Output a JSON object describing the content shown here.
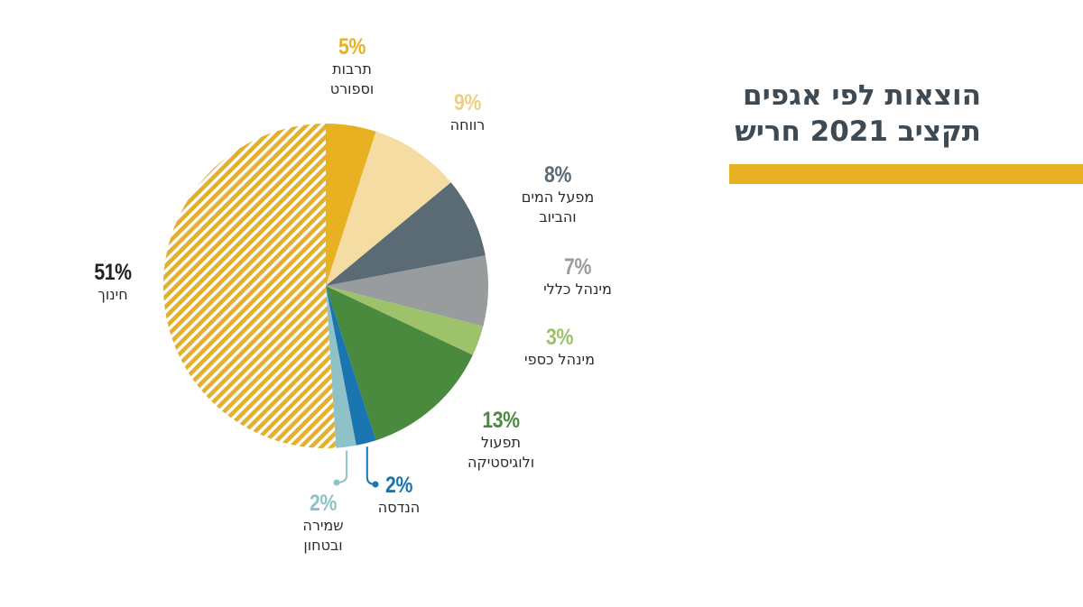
{
  "header": {
    "title_line1": "הוצאות לפי אגפים",
    "title_line2": "תקציב 2021 חריש"
  },
  "chart_data": {
    "type": "pie",
    "title": "הוצאות לפי אגפים תקציב 2021 חריש",
    "start": "12 o'clock, clockwise",
    "slices": [
      {
        "key": "culture",
        "pct_label": "5%",
        "value": 5,
        "name_lines": [
          "תרבות",
          "וספורט"
        ],
        "color": "#e8b122",
        "pct_color": "#e8b122",
        "pattern": "solid"
      },
      {
        "key": "welfare",
        "pct_label": "9%",
        "value": 9,
        "name_lines": [
          "רווחה"
        ],
        "color": "#f5dca3",
        "pct_color": "#f0cf84",
        "pattern": "solid"
      },
      {
        "key": "water",
        "pct_label": "8%",
        "value": 8,
        "name_lines": [
          "מפעל המים",
          "והביוב"
        ],
        "color": "#5a6b76",
        "pct_color": "#5a6b76",
        "pattern": "solid"
      },
      {
        "key": "general",
        "pct_label": "7%",
        "value": 7,
        "name_lines": [
          "מינהל כללי"
        ],
        "color": "#999c9d",
        "pct_color": "#999c9d",
        "pattern": "solid"
      },
      {
        "key": "finance",
        "pct_label": "3%",
        "value": 3,
        "name_lines": [
          "מינהל כספי"
        ],
        "color": "#9dc26a",
        "pct_color": "#9dc26a",
        "pattern": "solid"
      },
      {
        "key": "operations",
        "pct_label": "13%",
        "value": 13,
        "name_lines": [
          "תפעול",
          "ולוגיסטיקה"
        ],
        "color": "#4a8a3e",
        "pct_color": "#4a8a3e",
        "pattern": "solid"
      },
      {
        "key": "engineering",
        "pct_label": "2%",
        "value": 2,
        "name_lines": [
          "הנדסה"
        ],
        "color": "#1a75b0",
        "pct_color": "#1a75b0",
        "pattern": "solid"
      },
      {
        "key": "security",
        "pct_label": "2%",
        "value": 2,
        "name_lines": [
          "שמירה",
          "ובטחון"
        ],
        "color": "#8fc1c9",
        "pct_color": "#8fc1c9",
        "pattern": "solid"
      },
      {
        "key": "education",
        "pct_label": "51%",
        "value": 51,
        "name_lines": [
          "חינוך"
        ],
        "color": "#e3b02e",
        "pct_color": "#222222",
        "pattern": "hatched"
      }
    ]
  },
  "colors": {
    "title": "#3d4a54",
    "accent_bar": "#e8b122"
  }
}
